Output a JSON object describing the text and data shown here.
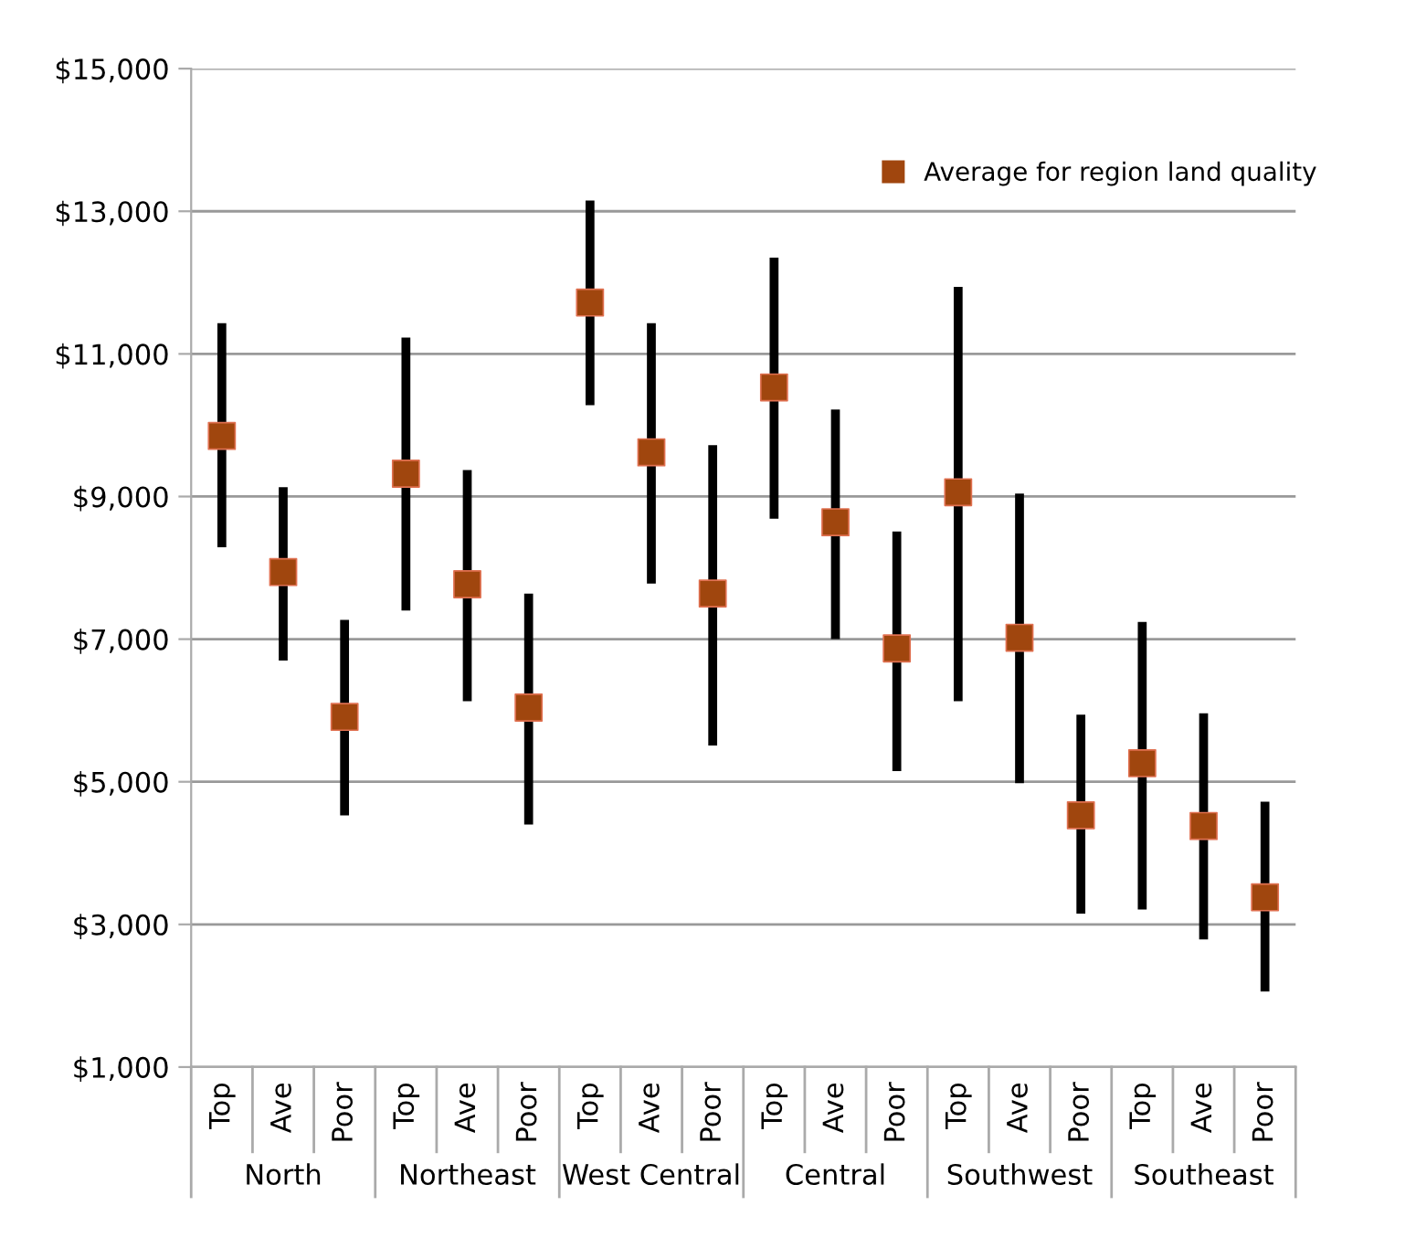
{
  "chart_data": {
    "type": "scatter",
    "categories": [
      "Top",
      "Ave",
      "Poor",
      "Top",
      "Ave",
      "Poor",
      "Top",
      "Ave",
      "Poor",
      "Top",
      "Ave",
      "Poor",
      "Top",
      "Ave",
      "Poor",
      "Top",
      "Ave",
      "Poor"
    ],
    "series": [
      {
        "name": "Average for region land quality",
        "color": "#a0460e",
        "values": [
          9850,
          7940,
          5910,
          9320,
          7770,
          6040,
          11720,
          9620,
          7640,
          10530,
          8640,
          6870,
          9060,
          7020,
          4530,
          5260,
          4380,
          3380
        ],
        "errors": [
          [
            8290,
            11430
          ],
          [
            6700,
            9130
          ],
          [
            4530,
            7270
          ],
          [
            7400,
            11230
          ],
          [
            6130,
            9370
          ],
          [
            4400,
            7640
          ],
          [
            10280,
            13150
          ],
          [
            7780,
            11430
          ],
          [
            5510,
            9720
          ],
          [
            8690,
            12350
          ],
          [
            7000,
            10220
          ],
          [
            5150,
            8510
          ],
          [
            6130,
            11940
          ],
          [
            4980,
            9040
          ],
          [
            3150,
            5940
          ],
          [
            3210,
            7240
          ],
          [
            2790,
            5960
          ],
          [
            2060,
            4720
          ]
        ]
      }
    ],
    "annotations": [
      "North",
      "Northeast",
      "West Central",
      "Central",
      "Southwest",
      "Southeast"
    ],
    "ylim": [
      1000,
      15000
    ],
    "yticks": [
      {
        "value": 1000,
        "label": "$1,000"
      },
      {
        "value": 3000,
        "label": "$3,000"
      },
      {
        "value": 5000,
        "label": "$5,000"
      },
      {
        "value": 7000,
        "label": "$7,000"
      },
      {
        "value": 9000,
        "label": "$9,000"
      },
      {
        "value": 11000,
        "label": "$11,000"
      },
      {
        "value": 13000,
        "label": "$13,000"
      },
      {
        "value": 15000,
        "label": "$15,000"
      }
    ],
    "grid": "y",
    "legend": "top right",
    "marker": "square"
  }
}
